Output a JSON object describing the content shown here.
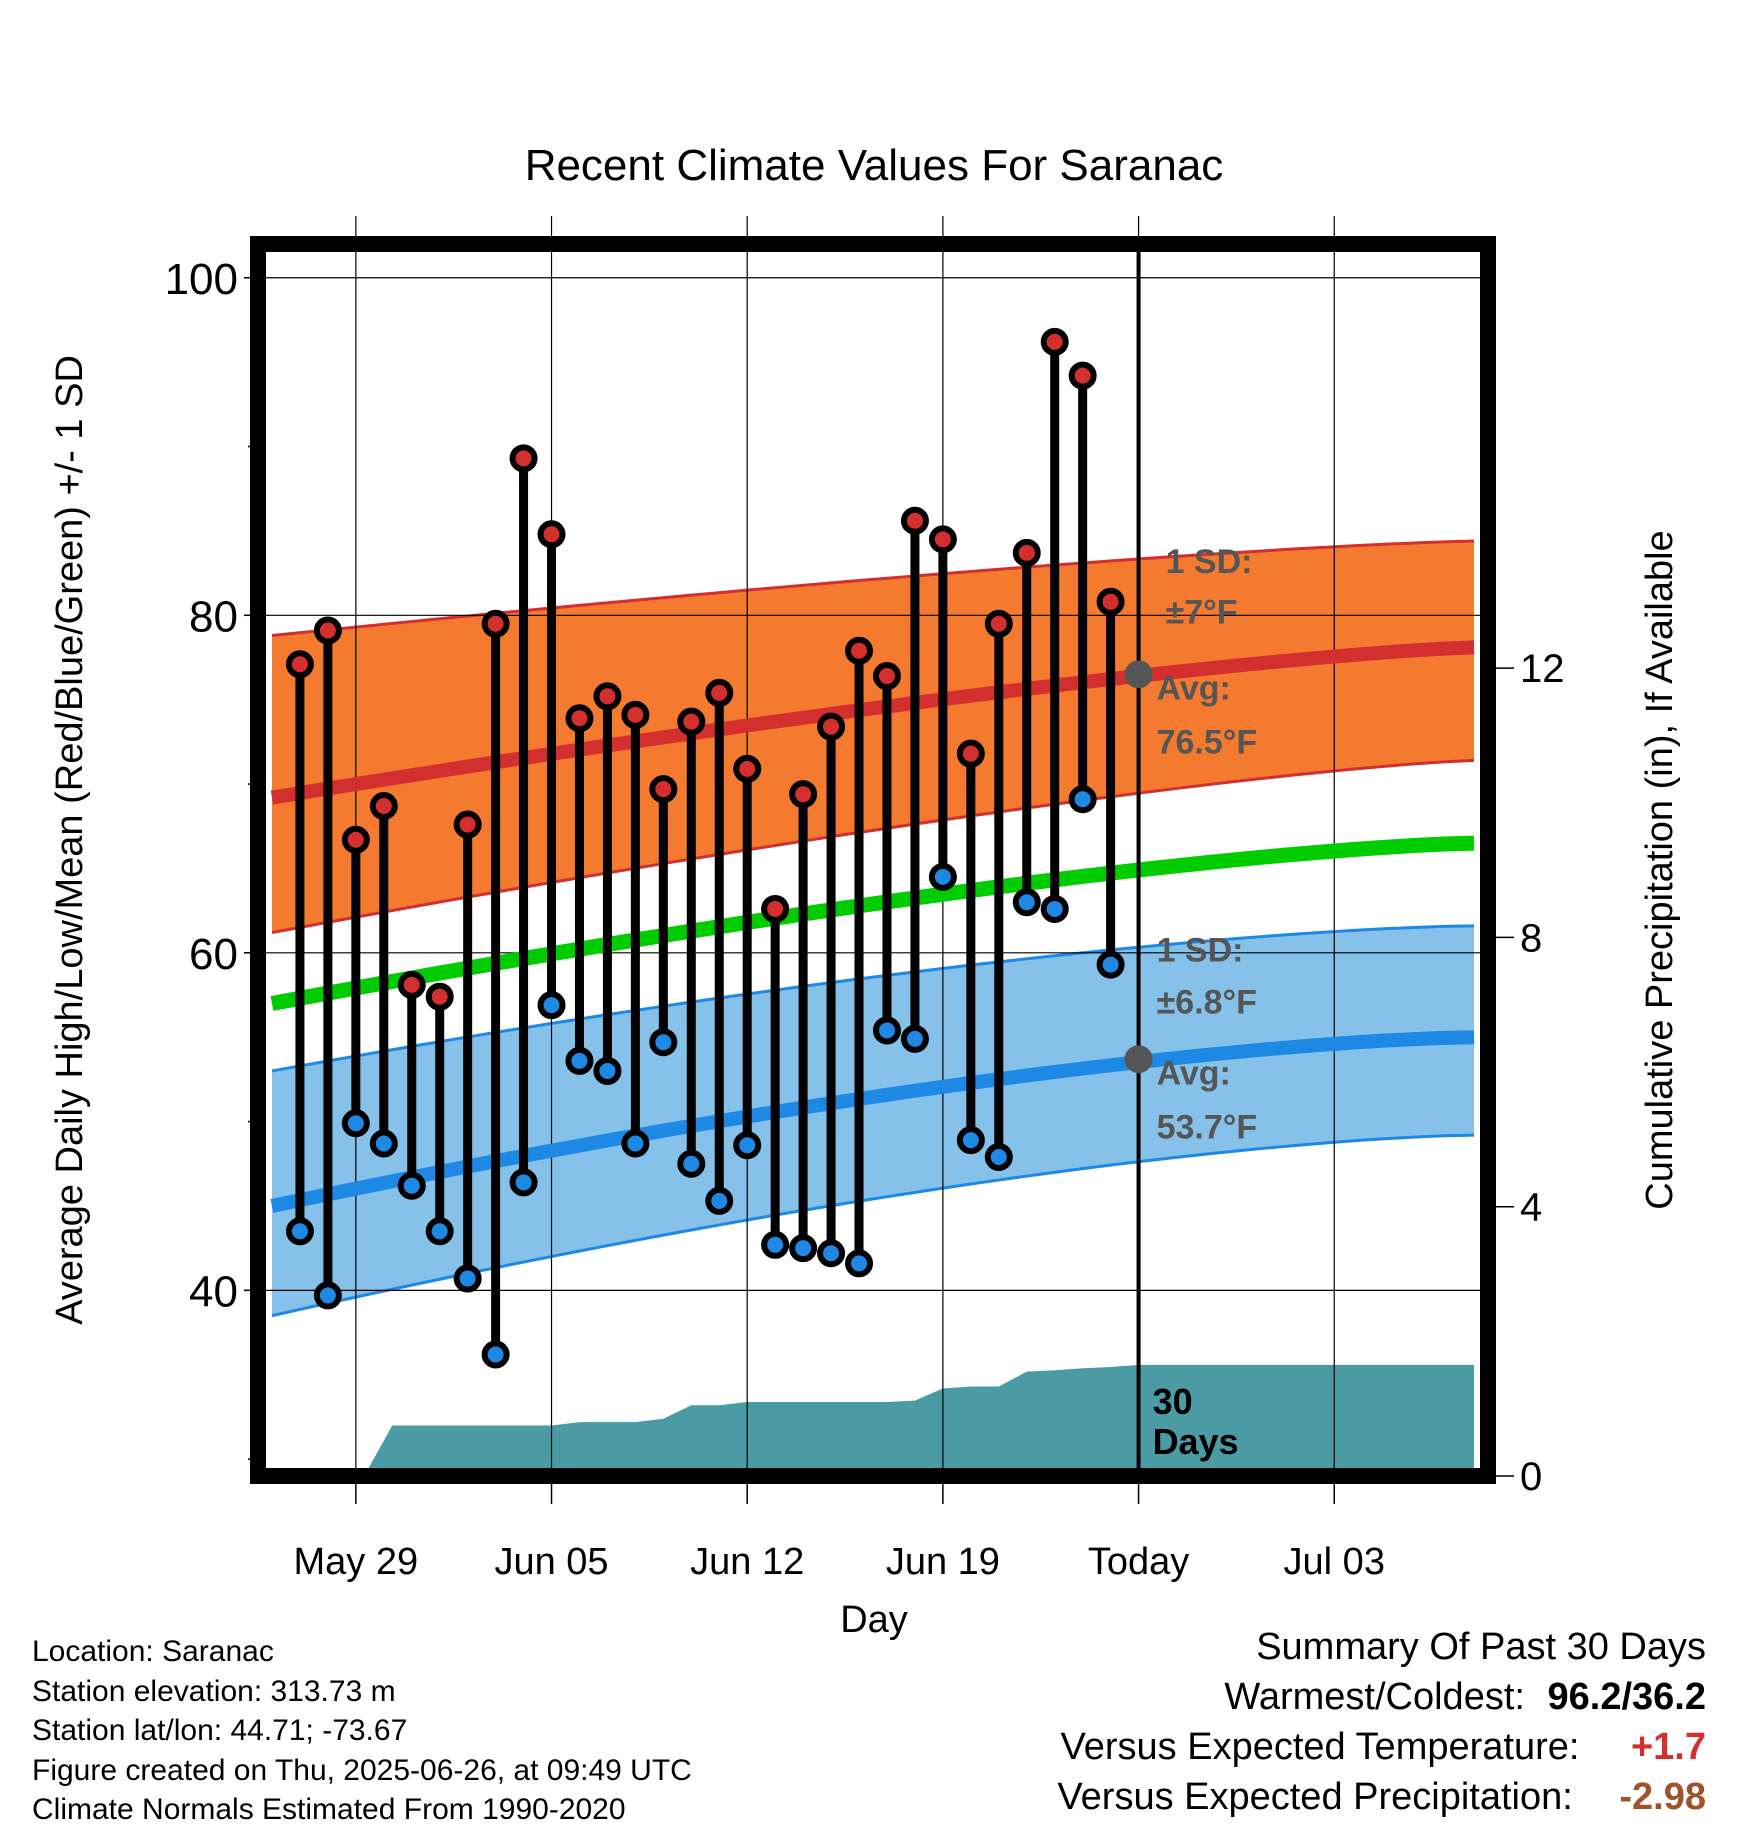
{
  "chart_data": {
    "type": "line",
    "title": "Recent Climate Values For Saranac",
    "xlabel": "Day",
    "ylabel": "Average Daily High/Low/Mean (Red/Blue/Green) +/- 1 SD",
    "y2label": "Cumulative Precipitation (in), If Available",
    "ylim": [
      29,
      102
    ],
    "y2lim": [
      0,
      18.3
    ],
    "xlim": [
      -3.5,
      40.5
    ],
    "x_ticks": [
      {
        "x": 0,
        "label": "May 29"
      },
      {
        "x": 7,
        "label": "Jun 05"
      },
      {
        "x": 14,
        "label": "Jun 12"
      },
      {
        "x": 21,
        "label": "Jun 19"
      },
      {
        "x": 28,
        "label": "Today"
      },
      {
        "x": 35,
        "label": "Jul 03"
      }
    ],
    "y_ticks": [
      40,
      60,
      80,
      100
    ],
    "y2_ticks": [
      0,
      4,
      8,
      12
    ],
    "today_x": 28,
    "today_label": "30 Days",
    "grid": true,
    "normals": {
      "x": [
        -3,
        40
      ],
      "high_mean": [
        69.2,
        78.1
      ],
      "high_upper": [
        78.8,
        84.4
      ],
      "high_lower": [
        61.2,
        71.4
      ],
      "mean": [
        57.0,
        66.5
      ],
      "low_mean": [
        45.0,
        55.0
      ],
      "low_upper": [
        53.0,
        61.6
      ],
      "low_lower": [
        38.5,
        49.2
      ]
    },
    "high_band_label": {
      "sd": "1 SD:",
      "sd_value": "±7°F",
      "avg": "Avg:",
      "avg_value": "76.5°F",
      "avg_y": 76.5
    },
    "low_band_label": {
      "sd": "1 SD:",
      "sd_value": "±6.8°F",
      "avg": "Avg:",
      "avg_value": "53.7°F",
      "avg_y": 53.7
    },
    "series": [
      {
        "name": "High",
        "x": [
          -2,
          -1,
          0,
          1,
          2,
          3,
          4,
          5,
          6,
          7,
          8,
          9,
          10,
          11,
          12,
          13,
          14,
          15,
          16,
          17,
          18,
          19,
          20,
          21,
          22,
          23,
          24,
          25,
          26,
          27
        ],
        "values": [
          77.1,
          79.1,
          66.7,
          68.7,
          58.1,
          57.4,
          67.6,
          79.5,
          89.3,
          84.8,
          73.9,
          75.2,
          74.1,
          69.7,
          73.7,
          75.4,
          70.9,
          62.6,
          69.4,
          73.4,
          77.9,
          76.4,
          85.6,
          84.5,
          71.8,
          79.5,
          83.7,
          96.2,
          94.2,
          80.8
        ],
        "color": "#d32f2f"
      },
      {
        "name": "Low",
        "x": [
          -2,
          -1,
          0,
          1,
          2,
          3,
          4,
          5,
          6,
          7,
          8,
          9,
          10,
          11,
          12,
          13,
          14,
          15,
          16,
          17,
          18,
          19,
          20,
          21,
          22,
          23,
          24,
          25,
          26,
          27
        ],
        "values": [
          43.5,
          39.7,
          49.9,
          48.7,
          46.2,
          43.5,
          40.7,
          36.2,
          46.4,
          56.9,
          53.6,
          53.0,
          48.7,
          54.7,
          47.5,
          45.3,
          48.6,
          42.7,
          42.5,
          42.2,
          41.6,
          55.4,
          54.9,
          64.5,
          48.9,
          47.9,
          63.0,
          62.6,
          69.1,
          59.3
        ],
        "color": "#1e88e5"
      }
    ],
    "precip": {
      "x": [
        -3,
        0.3,
        1.3,
        2,
        3,
        4,
        5,
        6,
        7,
        8,
        9,
        10,
        11,
        12,
        13,
        14,
        15,
        16,
        17,
        18,
        19,
        20,
        21,
        22,
        23,
        24,
        25,
        26,
        27,
        28,
        29,
        30,
        35,
        40
      ],
      "values": [
        0,
        0,
        0.75,
        0.75,
        0.75,
        0.75,
        0.75,
        0.75,
        0.75,
        0.8,
        0.8,
        0.8,
        0.85,
        1.05,
        1.05,
        1.1,
        1.1,
        1.1,
        1.1,
        1.1,
        1.1,
        1.12,
        1.3,
        1.33,
        1.33,
        1.55,
        1.57,
        1.6,
        1.62,
        1.65,
        1.65,
        1.65,
        1.65,
        1.65
      ],
      "color": "#4a9ba3"
    }
  },
  "meta": {
    "location": "Location: Saranac",
    "elevation": "Station elevation: 313.73 m",
    "latlon": "Station lat/lon: 44.71; -73.67",
    "created": "Figure created on Thu, 2025-06-26, at 09:49 UTC",
    "normals_period": "Climate Normals Estimated From 1990-2020"
  },
  "summary": {
    "title": "Summary Of Past 30 Days",
    "warm_cold_label": "Warmest/Coldest:",
    "warm_cold_value": "96.2/36.2",
    "temp_label": "Versus Expected Temperature:",
    "temp_value": "+1.7",
    "temp_color": "#d32f2f",
    "precip_label": "Versus Expected Precipitation:",
    "precip_value": "-2.98",
    "precip_color": "#a0522d"
  }
}
